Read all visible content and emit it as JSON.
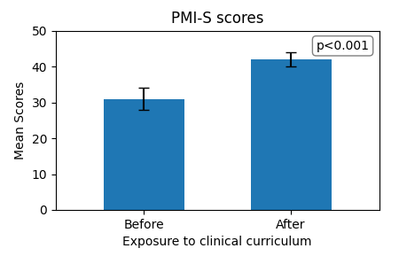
{
  "chart_data": {
    "type": "bar",
    "title": "PMI-S scores",
    "categories": [
      "Before",
      "After"
    ],
    "values": [
      31,
      42
    ],
    "errors": [
      3,
      2
    ],
    "xlabel": "Exposure to clinical curriculum",
    "ylabel": "Mean Scores",
    "ylim": [
      0,
      50
    ],
    "yticks": [
      0,
      10,
      20,
      30,
      40,
      50
    ],
    "annotation": "p<0.001",
    "grid": false
  }
}
